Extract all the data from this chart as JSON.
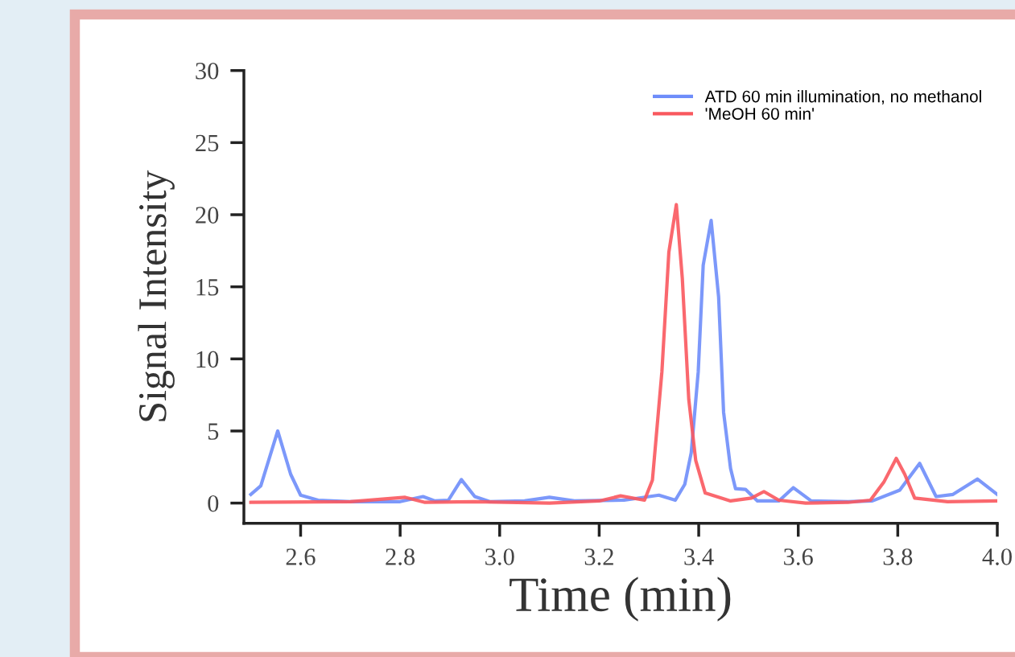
{
  "chart_data": {
    "type": "line",
    "xlabel": "Time (min)",
    "ylabel": "Signal Intensity",
    "xlim": [
      2.486,
      4.0
    ],
    "ylim": [
      -1.4,
      30
    ],
    "xticks": [
      {
        "value": 2.6,
        "label": "2.6"
      },
      {
        "value": 2.8,
        "label": "2.8"
      },
      {
        "value": 3.0,
        "label": "3.0"
      },
      {
        "value": 3.2,
        "label": "3.2"
      },
      {
        "value": 3.4,
        "label": "3.4"
      },
      {
        "value": 3.6,
        "label": "3.6"
      },
      {
        "value": 3.8,
        "label": "3.8"
      },
      {
        "value": 4.0,
        "label": "4.0"
      }
    ],
    "yticks": [
      0,
      5,
      10,
      15,
      20,
      25,
      30
    ],
    "grid": false,
    "legend": "top right",
    "marker": "none",
    "line_style": "solid",
    "series": [
      {
        "name": "ATD 60 min illumination, no methanol",
        "color": "#6e8dfa",
        "x": [
          2.5,
          2.52,
          2.554,
          2.58,
          2.6,
          2.635,
          2.7,
          2.8,
          2.846,
          2.87,
          2.897,
          2.923,
          2.95,
          2.98,
          3.05,
          3.1,
          3.15,
          3.25,
          3.32,
          3.353,
          3.372,
          3.385,
          3.399,
          3.409,
          3.425,
          3.44,
          3.45,
          3.464,
          3.474,
          3.494,
          3.518,
          3.561,
          3.59,
          3.626,
          3.7,
          3.749,
          3.804,
          3.844,
          3.877,
          3.911,
          3.96,
          4.0
        ],
        "values": [
          0.6,
          1.2,
          5.0,
          2.0,
          0.55,
          0.2,
          0.1,
          0.1,
          0.45,
          0.15,
          0.2,
          1.63,
          0.45,
          0.1,
          0.15,
          0.4,
          0.15,
          0.2,
          0.55,
          0.2,
          1.3,
          3.5,
          9.1,
          16.5,
          19.6,
          14.3,
          6.3,
          2.4,
          1.0,
          0.95,
          0.15,
          0.15,
          1.07,
          0.15,
          0.1,
          0.15,
          0.9,
          2.75,
          0.45,
          0.6,
          1.67,
          0.6
        ]
      },
      {
        "name": "'MeOH 60 min'",
        "color": "#f9585e",
        "x": [
          2.5,
          2.7,
          2.81,
          2.85,
          2.95,
          3.1,
          3.2,
          3.243,
          3.291,
          3.307,
          3.326,
          3.34,
          3.355,
          3.367,
          3.38,
          3.394,
          3.413,
          3.464,
          3.506,
          3.531,
          3.561,
          3.615,
          3.7,
          3.745,
          3.772,
          3.797,
          3.814,
          3.834,
          3.9,
          4.0
        ],
        "values": [
          0.05,
          0.1,
          0.4,
          0.05,
          0.1,
          0.0,
          0.15,
          0.5,
          0.2,
          1.6,
          9.1,
          17.4,
          20.7,
          15.6,
          7.2,
          2.95,
          0.7,
          0.15,
          0.35,
          0.8,
          0.2,
          0.0,
          0.05,
          0.2,
          1.45,
          3.1,
          2.0,
          0.35,
          0.1,
          0.15
        ]
      }
    ]
  }
}
